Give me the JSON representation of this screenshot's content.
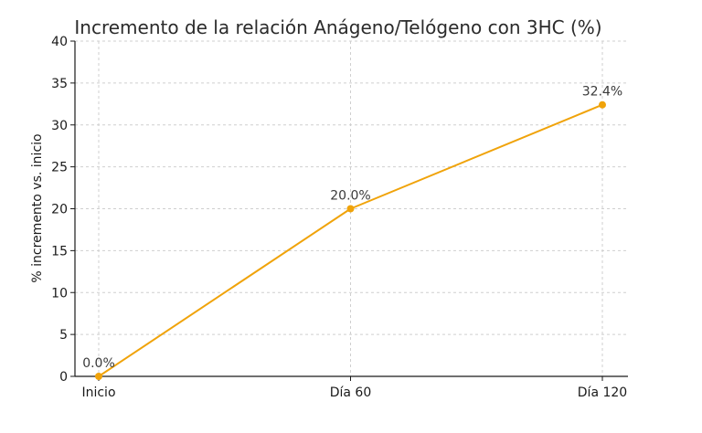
{
  "chart_data": {
    "type": "line",
    "title": "Incremento de la relación Anágeno/Telógeno con 3HC (%)",
    "xlabel": "",
    "ylabel": "% incremento vs. inicio",
    "categories": [
      "Inicio",
      "Día 60",
      "Día 120"
    ],
    "series": [
      {
        "values": [
          0.0,
          20.0,
          32.4
        ],
        "data_labels": [
          "0.0%",
          "20.0%",
          "32.4%"
        ],
        "color": "#f0a30a"
      }
    ],
    "ylim": [
      0,
      40
    ],
    "yticks": [
      0,
      5,
      10,
      15,
      20,
      25,
      30,
      35,
      40
    ],
    "ytick_labels": [
      "0",
      "5",
      "10",
      "15",
      "20",
      "25",
      "30",
      "35",
      "40"
    ],
    "grid": true,
    "grid_style": "dashed"
  }
}
